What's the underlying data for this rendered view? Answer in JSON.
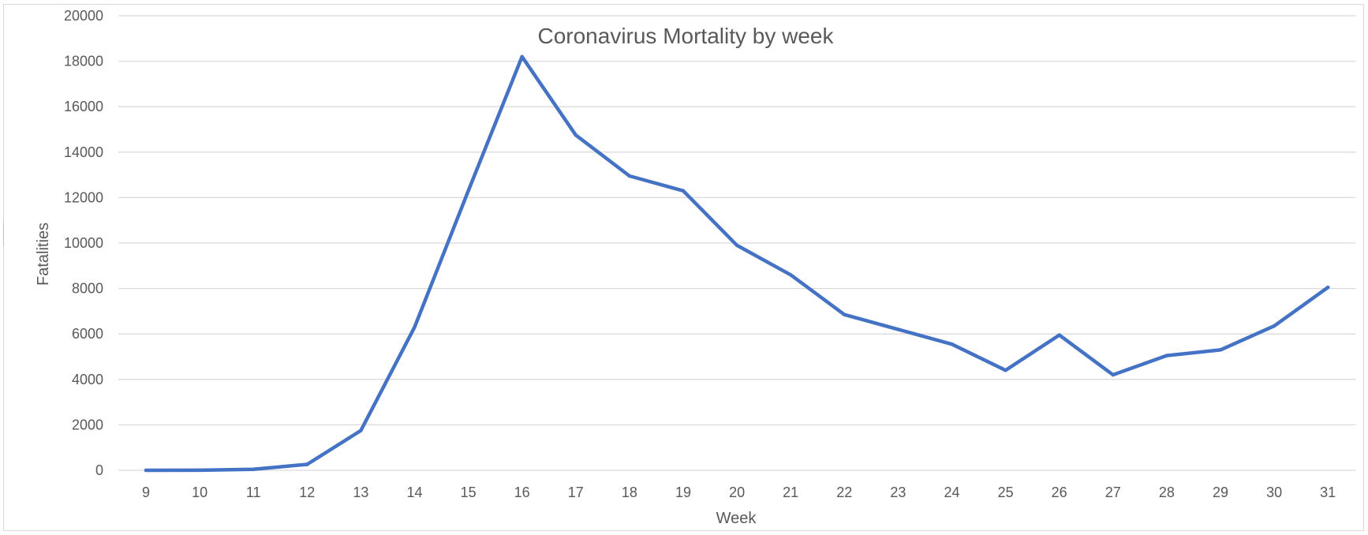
{
  "chart_data": {
    "type": "line",
    "title": "Coronavirus Mortality by week",
    "xlabel": "Week",
    "ylabel": "Fatalities",
    "ylim": [
      0,
      20000
    ],
    "yticks": [
      0,
      2000,
      4000,
      6000,
      8000,
      10000,
      12000,
      14000,
      16000,
      18000,
      20000
    ],
    "grid": true,
    "legend": "none",
    "categories": [
      "9",
      "10",
      "11",
      "12",
      "13",
      "14",
      "15",
      "16",
      "17",
      "18",
      "19",
      "20",
      "21",
      "22",
      "23",
      "24",
      "25",
      "26",
      "27",
      "28",
      "29",
      "30",
      "31"
    ],
    "series": [
      {
        "color": "#4472c4",
        "values": [
          0,
          5,
          40,
          260,
          1750,
          6300,
          12300,
          18200,
          14750,
          12950,
          12300,
          9900,
          8600,
          6850,
          6200,
          5550,
          4400,
          5950,
          4200,
          5050,
          5300,
          6350,
          8050
        ]
      }
    ]
  }
}
